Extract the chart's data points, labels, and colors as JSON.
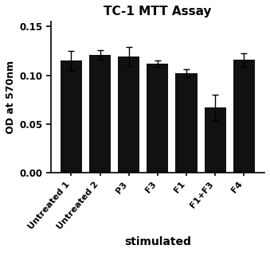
{
  "title": "TC-1 MTT Assay",
  "xlabel": "stimulated",
  "ylabel": "OD at 570nm",
  "categories": [
    "Untreated 1",
    "Untreated 2",
    "P3",
    "F3",
    "F1",
    "F1+F3",
    "F4"
  ],
  "values": [
    0.115,
    0.121,
    0.119,
    0.112,
    0.102,
    0.067,
    0.116
  ],
  "errors": [
    0.01,
    0.005,
    0.01,
    0.003,
    0.004,
    0.013,
    0.007
  ],
  "bar_color": "#111111",
  "ylim": [
    0,
    0.155
  ],
  "yticks": [
    0.0,
    0.05,
    0.1,
    0.15
  ],
  "title_fontsize": 11,
  "ylabel_fontsize": 9,
  "xlabel_fontsize": 10,
  "xtick_fontsize": 8,
  "ytick_fontsize": 8.5,
  "background_color": "#ffffff",
  "bar_width": 0.75
}
